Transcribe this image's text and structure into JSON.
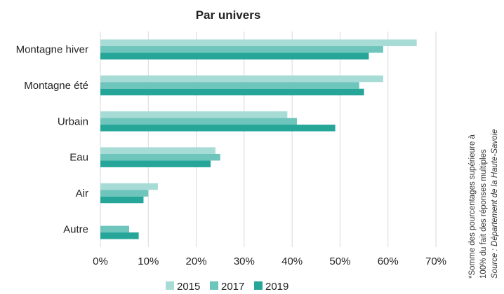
{
  "chart_data": {
    "type": "bar",
    "orientation": "horizontal",
    "title": "Par univers",
    "categories": [
      "Montagne hiver",
      "Montagne été",
      "Urbain",
      "Eau",
      "Air",
      "Autre"
    ],
    "series": [
      {
        "name": "2015",
        "values": [
          66,
          59,
          39,
          24,
          12,
          null
        ],
        "color": "#a7dcd6"
      },
      {
        "name": "2017",
        "values": [
          59,
          54,
          41,
          25,
          10,
          6
        ],
        "color": "#6dc5bc"
      },
      {
        "name": "2019",
        "values": [
          56,
          55,
          49,
          23,
          9,
          8
        ],
        "color": "#26a699"
      }
    ],
    "xlim": [
      0,
      70
    ],
    "xticks": [
      0,
      10,
      20,
      30,
      40,
      50,
      60,
      70
    ],
    "xtick_labels": [
      "0%",
      "10%",
      "20%",
      "30%",
      "40%",
      "50%",
      "60%",
      "70%"
    ],
    "grid": "vertical",
    "legend_position": "bottom-center",
    "notes": [
      "*Somme des pourcentages supérieure à",
      "100% du fait des réponses multiples"
    ],
    "source": "Source : Département de la Haute-Savoie"
  }
}
